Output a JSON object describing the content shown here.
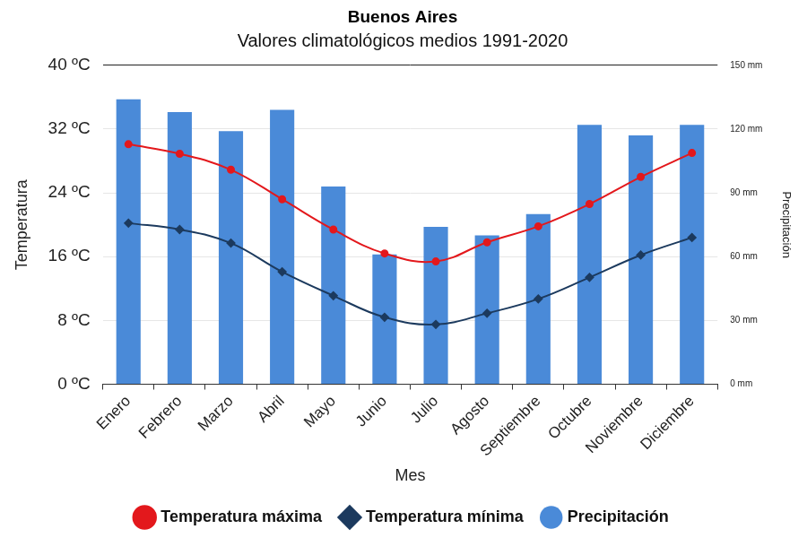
{
  "chart_data": {
    "type": "bar",
    "title": "Buenos Aires",
    "subtitle": "Valores climatológicos medios 1991-2020",
    "x_label": "Mes",
    "y_label": "Temperatura",
    "y2_label": "Precipitación",
    "categories": [
      "Enero",
      "Febrero",
      "Marzo",
      "Abril",
      "Mayo",
      "Junio",
      "Julio",
      "Agosto",
      "Septiembre",
      "Octubre",
      "Noviembre",
      "Diciembre"
    ],
    "series": [
      {
        "name": "Precipitación",
        "type": "bar",
        "color": "#4a8ad8",
        "axis": "y2",
        "values": [
          134,
          128,
          119,
          129,
          93,
          61,
          74,
          70,
          80,
          122,
          117,
          122
        ]
      },
      {
        "name": "Temperatura máxima",
        "type": "line",
        "color": "#e3181c",
        "marker": "circle",
        "values": [
          30.1,
          28.9,
          26.9,
          23.2,
          19.4,
          16.4,
          15.4,
          17.8,
          19.8,
          22.6,
          26.0,
          29.0
        ]
      },
      {
        "name": "Temperatura mínima",
        "type": "line",
        "color": "#1c3a5e",
        "marker": "diamond",
        "values": [
          20.2,
          19.4,
          17.7,
          14.1,
          11.1,
          8.4,
          7.5,
          8.9,
          10.7,
          13.4,
          16.2,
          18.4
        ]
      }
    ],
    "ylim": [
      0,
      40
    ],
    "yticks": [
      {
        "value": 0,
        "label": "0 ºC"
      },
      {
        "value": 8,
        "label": "8 ºC"
      },
      {
        "value": 16,
        "label": "16 ºC"
      },
      {
        "value": 24,
        "label": "24 ºC"
      },
      {
        "value": 32,
        "label": "32 ºC"
      },
      {
        "value": 40,
        "label": "40 ºC"
      }
    ],
    "y2lim": [
      0,
      150
    ],
    "y2ticks": [
      {
        "value": 0,
        "label": "0 mm"
      },
      {
        "value": 30,
        "label": "30 mm"
      },
      {
        "value": 60,
        "label": "60 mm"
      },
      {
        "value": 90,
        "label": "90 mm"
      },
      {
        "value": 120,
        "label": "120 mm"
      },
      {
        "value": 150,
        "label": "150 mm"
      }
    ],
    "grid": true,
    "legend": "bottom"
  }
}
